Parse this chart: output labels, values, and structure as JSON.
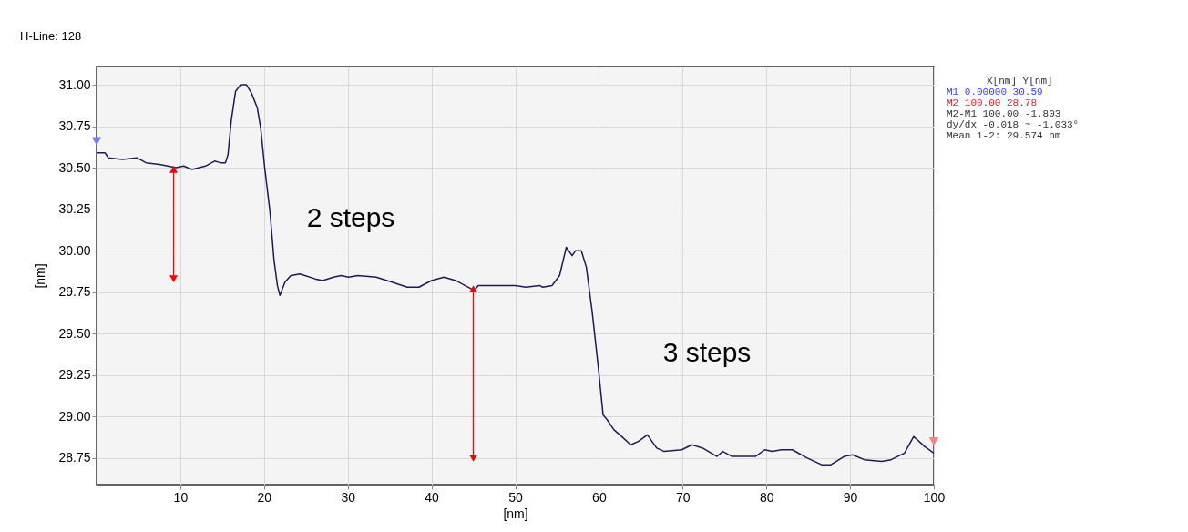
{
  "chart_data": {
    "type": "line",
    "title": "H-Line: 128",
    "xlabel": "[nm]",
    "ylabel": "[nm]",
    "xlim": [
      0,
      100
    ],
    "xticks": [
      10,
      20,
      30,
      40,
      50,
      60,
      70,
      80,
      90,
      100
    ],
    "ylim": [
      28.59,
      31.11
    ],
    "yticks": [
      {
        "value": 28.75,
        "label": "28.75"
      },
      {
        "value": 29,
        "label": "29.00"
      },
      {
        "value": 29.25,
        "label": "29.25"
      },
      {
        "value": 29.5,
        "label": "29.50"
      },
      {
        "value": 29.75,
        "label": "29.75"
      },
      {
        "value": 30,
        "label": "30.00"
      },
      {
        "value": 30.25,
        "label": "30.25"
      },
      {
        "value": 30.5,
        "label": "30.50"
      },
      {
        "value": 30.75,
        "label": "30.75"
      },
      {
        "value": 31,
        "label": "31.00"
      }
    ],
    "grid": true,
    "line_style": "solid",
    "series": [
      {
        "color": "#1c1c55",
        "marker": "none",
        "x": [
          0,
          1.0,
          1.4,
          3.1,
          4.8,
          5.9,
          7.5,
          9.5,
          10.4,
          11.4,
          13.0,
          14.1,
          14.8,
          15.4,
          15.7,
          16.1,
          16.6,
          17.2,
          17.9,
          18.5,
          19.2,
          19.6,
          20.1,
          20.7,
          21.2,
          21.6,
          21.9,
          22.5,
          23.2,
          24.3,
          26.1,
          27.0,
          28.3,
          29.2,
          30.1,
          31.2,
          33.4,
          35.3,
          37.1,
          38.5,
          40.0,
          41.5,
          42.9,
          44.0,
          45.1,
          45.6,
          47.4,
          50.0,
          51.3,
          52.9,
          53.3,
          54.4,
          55.3,
          56.1,
          56.8,
          57.2,
          57.9,
          58.5,
          59.2,
          59.9,
          60.5,
          61.0,
          61.8,
          62.5,
          63.8,
          64.7,
          65.8,
          66.9,
          67.8,
          69.9,
          71.1,
          72.4,
          74.1,
          74.8,
          75.9,
          78.7,
          79.8,
          80.7,
          81.8,
          83.1,
          84.9,
          86.6,
          87.7,
          89.3,
          90.3,
          91.7,
          93.8,
          94.9,
          96.5,
          97.6,
          98.9,
          100
        ],
        "values": [
          30.59,
          30.59,
          30.56,
          30.55,
          30.56,
          30.53,
          30.52,
          30.5,
          30.51,
          30.49,
          30.51,
          30.54,
          30.53,
          30.53,
          30.58,
          30.79,
          30.96,
          31.0,
          31.0,
          30.95,
          30.86,
          30.74,
          30.49,
          30.24,
          29.94,
          29.79,
          29.73,
          29.81,
          29.85,
          29.86,
          29.83,
          29.82,
          29.84,
          29.85,
          29.84,
          29.85,
          29.84,
          29.81,
          29.78,
          29.78,
          29.82,
          29.84,
          29.82,
          29.79,
          29.76,
          29.79,
          29.79,
          29.79,
          29.78,
          29.79,
          29.78,
          29.79,
          29.85,
          30.02,
          29.97,
          30.0,
          30.0,
          29.9,
          29.63,
          29.31,
          29.01,
          28.98,
          28.92,
          28.89,
          28.83,
          28.85,
          28.89,
          28.81,
          28.79,
          28.8,
          28.83,
          28.81,
          28.76,
          28.79,
          28.76,
          28.76,
          28.8,
          28.79,
          28.8,
          28.8,
          28.75,
          28.71,
          28.71,
          28.76,
          28.77,
          28.74,
          28.73,
          28.74,
          28.78,
          28.88,
          28.82,
          28.78
        ]
      },
      {
        "type": "scatter",
        "marker": "triangle",
        "x": [
          0,
          100
        ],
        "values": [
          30.66,
          28.85
        ],
        "colors": [
          "#7b7bff",
          "#ff8080"
        ]
      },
      {
        "color": "#ff0000",
        "marker": "triangle",
        "x": [
          9.2,
          9.2
        ],
        "values": [
          30.49,
          29.83
        ]
      },
      {
        "color": "#ff0000",
        "marker": "triangle",
        "x": [
          45.0,
          45.0
        ],
        "values": [
          29.77,
          28.75
        ]
      }
    ],
    "annotations": [
      "2 steps",
      "3 steps",
      "X[nm] Y[nm]",
      "M1 0.00000 30.59",
      "M2 100.00 28.78",
      "M2-M1 100.00 -1.803",
      "dy/dx -0.018 ~ -1.033°",
      "Mean 1-2: 29.574 nm"
    ]
  }
}
